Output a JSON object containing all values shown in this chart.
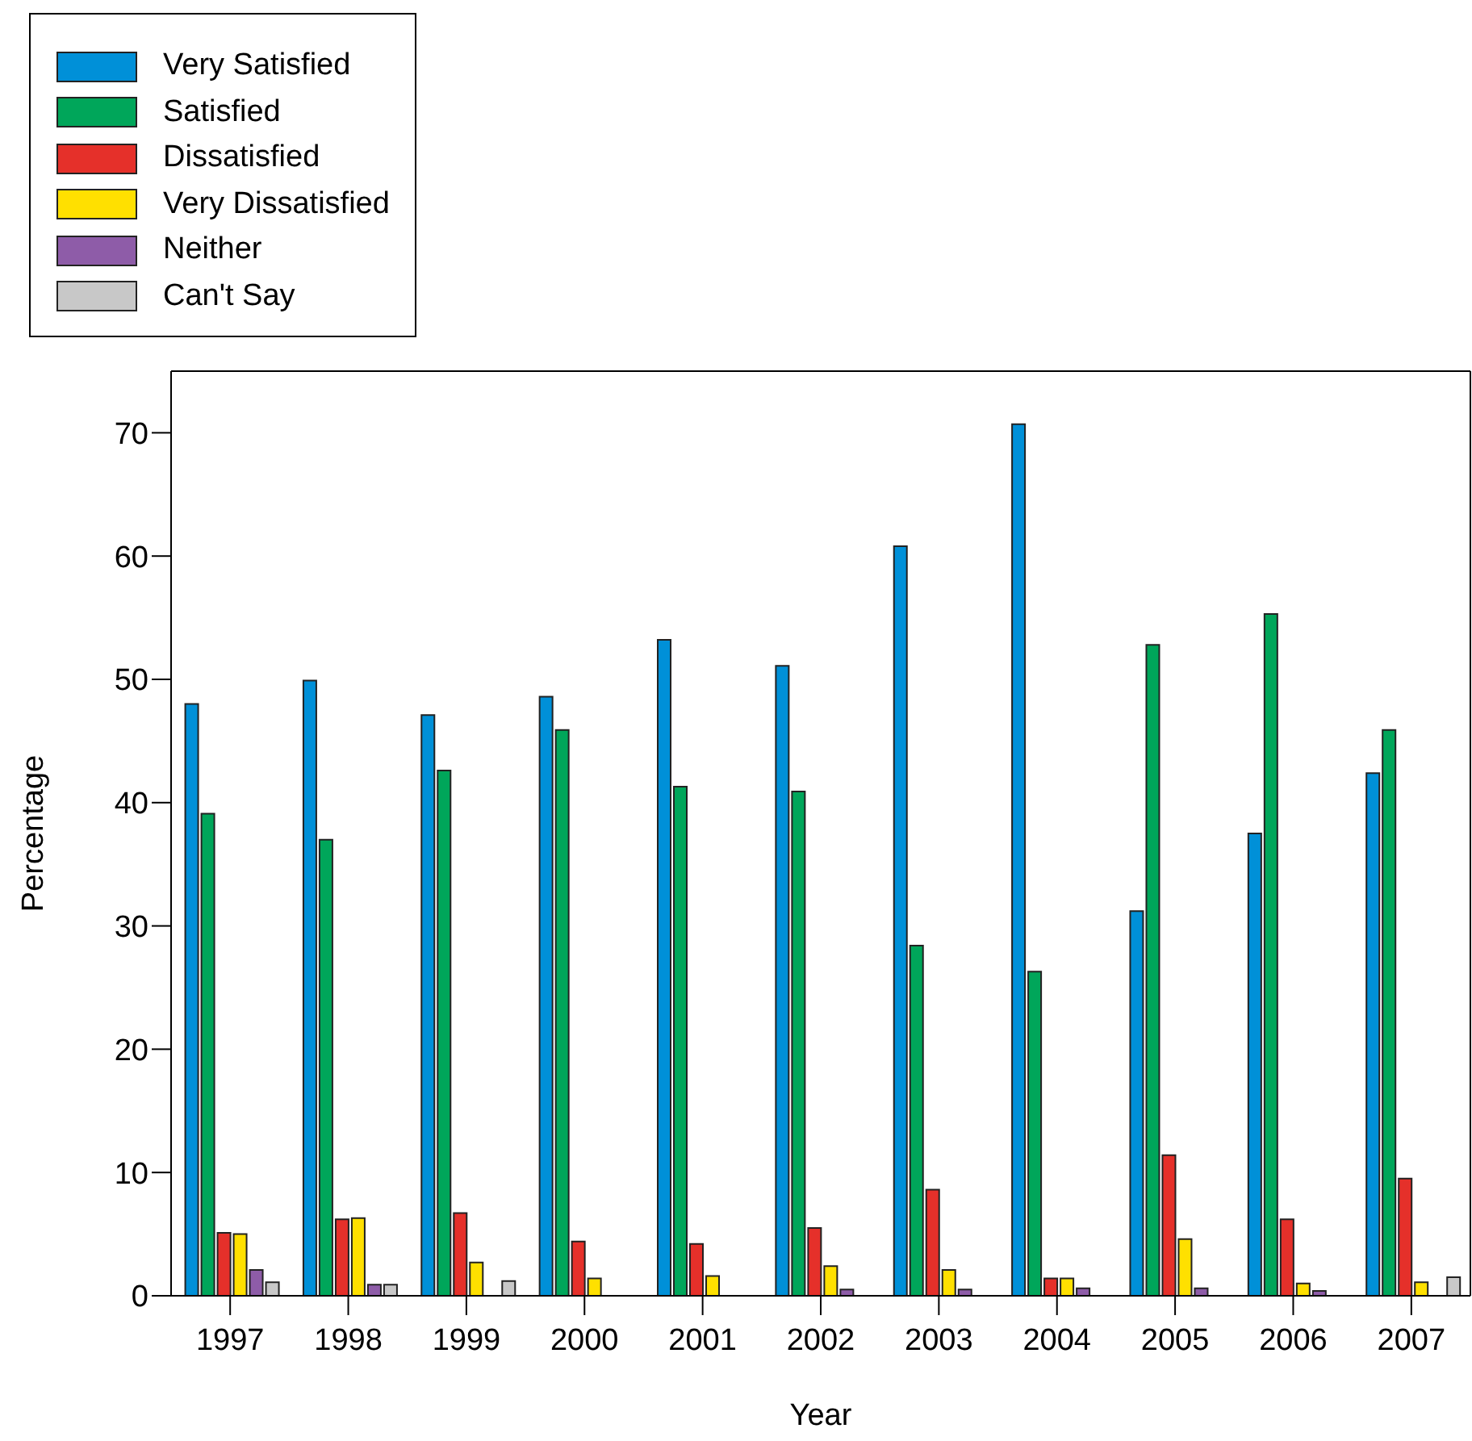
{
  "chart_data": {
    "type": "bar",
    "xlabel": "Year",
    "ylabel": "Percentage",
    "categories": [
      "1997",
      "1998",
      "1999",
      "2000",
      "2001",
      "2002",
      "2003",
      "2004",
      "2005",
      "2006",
      "2007"
    ],
    "series": [
      {
        "name": "Very Satisfied",
        "color": "#0090d8",
        "values": [
          48.0,
          49.9,
          47.1,
          48.6,
          53.2,
          51.1,
          60.8,
          70.7,
          31.2,
          37.5,
          42.4
        ]
      },
      {
        "name": "Satisfied",
        "color": "#00a65a",
        "values": [
          39.1,
          37.0,
          42.6,
          45.9,
          41.3,
          40.9,
          28.4,
          26.3,
          52.8,
          55.3,
          45.9
        ]
      },
      {
        "name": "Dissatisfied",
        "color": "#e5302a",
        "values": [
          5.1,
          6.2,
          6.7,
          4.4,
          4.2,
          5.5,
          8.6,
          1.4,
          11.4,
          6.2,
          9.5
        ]
      },
      {
        "name": "Very Dissatisfied",
        "color": "#ffe000",
        "values": [
          5.0,
          6.3,
          2.7,
          1.4,
          1.6,
          2.4,
          2.1,
          1.4,
          4.6,
          1.0,
          1.1
        ]
      },
      {
        "name": "Neither",
        "color": "#8e5ca8",
        "values": [
          2.1,
          0.9,
          null,
          null,
          null,
          0.5,
          0.5,
          0.6,
          0.6,
          0.4,
          null
        ]
      },
      {
        "name": "Can't Say",
        "color": "#c8c8c8",
        "values": [
          1.1,
          0.9,
          1.2,
          null,
          null,
          null,
          null,
          null,
          null,
          null,
          1.5
        ]
      }
    ],
    "ylim": [
      0,
      75
    ],
    "yticks": [
      0,
      10,
      20,
      30,
      40,
      50,
      60,
      70
    ],
    "grid": false,
    "legend": "top left"
  }
}
